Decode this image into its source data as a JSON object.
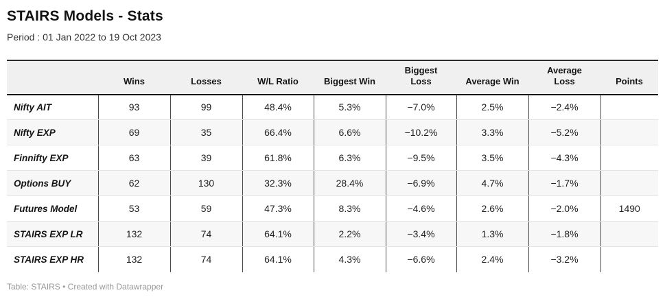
{
  "page": {
    "title": "STAIRS Models - Stats",
    "subtitle": "Period : 01 Jan 2022 to 19 Oct 2023",
    "footer": "Table: STAIRS • Created with Datawrapper"
  },
  "chart_data": {
    "type": "table",
    "title": "STAIRS Models - Stats",
    "subtitle": "Period : 01 Jan 2022 to 19 Oct 2023",
    "columns": [
      "",
      "Wins",
      "Losses",
      "W/L Ratio",
      "Biggest Win",
      "Biggest\nLoss",
      "Average Win",
      "Average\nLoss",
      "Points"
    ],
    "rows": [
      {
        "label": "Nifty AIT",
        "values": [
          "93",
          "99",
          "48.4%",
          "5.3%",
          "−7.0%",
          "2.5%",
          "−2.4%",
          ""
        ]
      },
      {
        "label": "Nifty EXP",
        "values": [
          "69",
          "35",
          "66.4%",
          "6.6%",
          "−10.2%",
          "3.3%",
          "−5.2%",
          ""
        ]
      },
      {
        "label": "Finnifty EXP",
        "values": [
          "63",
          "39",
          "61.8%",
          "6.3%",
          "−9.5%",
          "3.5%",
          "−4.3%",
          ""
        ]
      },
      {
        "label": "Options BUY",
        "values": [
          "62",
          "130",
          "32.3%",
          "28.4%",
          "−6.9%",
          "4.7%",
          "−1.7%",
          ""
        ]
      },
      {
        "label": "Futures Model",
        "values": [
          "53",
          "59",
          "47.3%",
          "8.3%",
          "−4.6%",
          "2.6%",
          "−2.0%",
          "1490"
        ]
      },
      {
        "label": "STAIRS EXP LR",
        "values": [
          "132",
          "74",
          "64.1%",
          "2.2%",
          "−3.4%",
          "1.3%",
          "−1.8%",
          ""
        ]
      },
      {
        "label": "STAIRS EXP HR",
        "values": [
          "132",
          "74",
          "64.1%",
          "4.3%",
          "−6.6%",
          "2.4%",
          "−3.2%",
          ""
        ]
      }
    ],
    "footer": "Table: STAIRS • Created with Datawrapper",
    "layout": {
      "stripe_rows": "even",
      "header_align": "center",
      "cell_align": "center",
      "label_align": "left"
    },
    "colors": {
      "header_bg": "#f0f0f0",
      "stripe_bg": "#f7f7f7",
      "heavy_border": "#161616",
      "column_border": "#4a4a4a",
      "row_border": "#e4e4e4",
      "footer_text": "#969696"
    }
  }
}
